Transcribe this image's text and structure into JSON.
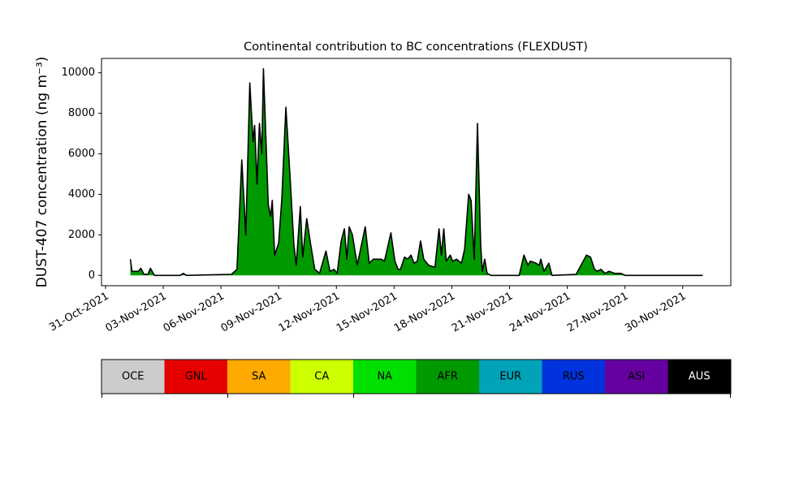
{
  "chart_data": {
    "type": "area",
    "title": "Continental contribution to BC concentrations (FLEXDUST)",
    "y_label": "DUST-407 concentration (ng m⁻³)",
    "x": [
      "2021-11-01T07:00Z",
      "2021-11-01T09:00Z",
      "2021-11-01T17:00Z",
      "2021-11-01T20:00Z",
      "2021-11-02T00:00Z",
      "2021-11-02T05:00Z",
      "2021-11-02T08:00Z",
      "2021-11-02T13:00Z",
      "2021-11-03T21:00Z",
      "2021-11-04T01:00Z",
      "2021-11-04T05:00Z",
      "2021-11-06T13:00Z",
      "2021-11-06T20:00Z",
      "2021-11-07T02:00Z",
      "2021-11-07T07:00Z",
      "2021-11-07T12:00Z",
      "2021-11-07T16:00Z",
      "2021-11-07T18:00Z",
      "2021-11-07T21:00Z",
      "2021-11-08T00:00Z",
      "2021-11-08T03:00Z",
      "2021-11-08T05:00Z",
      "2021-11-08T11:00Z",
      "2021-11-08T14:00Z",
      "2021-11-08T16:00Z",
      "2021-11-08T19:00Z",
      "2021-11-09T00:00Z",
      "2021-11-09T04:00Z",
      "2021-11-09T09:00Z",
      "2021-11-09T14:00Z",
      "2021-11-09T19:00Z",
      "2021-11-09T22:00Z",
      "2021-11-10T03:00Z",
      "2021-11-10T06:00Z",
      "2021-11-10T11:00Z",
      "2021-11-10T16:00Z",
      "2021-11-10T21:00Z",
      "2021-11-11T03:00Z",
      "2021-11-11T11:00Z",
      "2021-11-11T16:00Z",
      "2021-11-11T21:00Z",
      "2021-11-12T01:00Z",
      "2021-11-12T06:00Z",
      "2021-11-12T10:00Z",
      "2021-11-12T13:00Z",
      "2021-11-12T16:00Z",
      "2021-11-12T20:00Z",
      "2021-11-13T02:00Z",
      "2021-11-13T12:00Z",
      "2021-11-13T17:00Z",
      "2021-11-13T22:00Z",
      "2021-11-14T08:00Z",
      "2021-11-14T12:00Z",
      "2021-11-14T20:00Z",
      "2021-11-15T01:00Z",
      "2021-11-15T05:00Z",
      "2021-11-15T08:00Z",
      "2021-11-15T13:00Z",
      "2021-11-15T17:00Z",
      "2021-11-15T21:00Z",
      "2021-11-16T01:00Z",
      "2021-11-16T05:00Z",
      "2021-11-16T09:00Z",
      "2021-11-16T13:00Z",
      "2021-11-16T19:00Z",
      "2021-11-17T03:00Z",
      "2021-11-17T08:00Z",
      "2021-11-17T11:00Z",
      "2021-11-17T14:00Z",
      "2021-11-17T17:00Z",
      "2021-11-17T22:00Z",
      "2021-11-18T01:00Z",
      "2021-11-18T06:00Z",
      "2021-11-18T12:00Z",
      "2021-11-18T16:00Z",
      "2021-11-18T21:00Z",
      "2021-11-19T00:00Z",
      "2021-11-19T04:00Z",
      "2021-11-19T08:00Z",
      "2021-11-19T12:00Z",
      "2021-11-19T14:00Z",
      "2021-11-19T17:00Z",
      "2021-11-19T20:00Z",
      "2021-11-20T01:00Z",
      "2021-11-21T12:00Z",
      "2021-11-21T18:00Z",
      "2021-11-21T23:00Z",
      "2021-11-22T02:00Z",
      "2021-11-22T09:00Z",
      "2021-11-22T13:00Z",
      "2021-11-22T15:00Z",
      "2021-11-22T19:00Z",
      "2021-11-23T01:00Z",
      "2021-11-23T05:00Z",
      "2021-11-24T11:00Z",
      "2021-11-25T00:00Z",
      "2021-11-25T05:00Z",
      "2021-11-25T10:00Z",
      "2021-11-25T13:00Z",
      "2021-11-25T18:00Z",
      "2021-11-25T23:00Z",
      "2021-11-26T04:00Z",
      "2021-11-26T11:00Z",
      "2021-11-26T19:00Z",
      "2021-11-27T00:00Z",
      "2021-12-01T01:00Z"
    ],
    "series": [
      {
        "name": "AFR",
        "color": "#009900",
        "values": [
          800,
          200,
          200,
          350,
          50,
          60,
          350,
          0,
          0,
          100,
          0,
          50,
          300,
          5700,
          2000,
          9500,
          6600,
          7400,
          4500,
          7500,
          6000,
          10200,
          3500,
          2900,
          3700,
          1000,
          1600,
          3800,
          8300,
          5000,
          1500,
          500,
          3400,
          900,
          2800,
          1500,
          300,
          100,
          1200,
          200,
          300,
          100,
          1700,
          2300,
          800,
          2400,
          2000,
          500,
          2400,
          600,
          800,
          800,
          700,
          2100,
          700,
          300,
          300,
          900,
          800,
          1000,
          600,
          700,
          1700,
          800,
          500,
          400,
          2300,
          1000,
          2300,
          700,
          1000,
          700,
          800,
          600,
          1300,
          4000,
          3700,
          800,
          7500,
          1500,
          200,
          800,
          100,
          0,
          0,
          1000,
          500,
          700,
          600,
          500,
          800,
          200,
          600,
          0,
          50,
          1000,
          900,
          300,
          200,
          300,
          100,
          200,
          100,
          100,
          0,
          0
        ]
      }
    ],
    "outline_color": "#000000",
    "legend": [
      {
        "name": "OCE",
        "color": "#cccccc"
      },
      {
        "name": "GNL",
        "color": "#e60000"
      },
      {
        "name": "SA",
        "color": "#ffaa00"
      },
      {
        "name": "CA",
        "color": "#ccff00"
      },
      {
        "name": "NA",
        "color": "#00e000"
      },
      {
        "name": "AFR",
        "color": "#009900"
      },
      {
        "name": "EUR",
        "color": "#00a3b8"
      },
      {
        "name": "RUS",
        "color": "#0033dd"
      },
      {
        "name": "ASI",
        "color": "#6600a0"
      },
      {
        "name": "AUS",
        "color": "#000000"
      }
    ],
    "xlim": [
      "2021-10-30T19:00Z",
      "2021-12-02T12:00Z"
    ],
    "xticks": [
      {
        "value": "2021-10-31T00:00Z",
        "label": "31-Oct-2021"
      },
      {
        "value": "2021-11-03T00:00Z",
        "label": "03-Nov-2021"
      },
      {
        "value": "2021-11-06T00:00Z",
        "label": "06-Nov-2021"
      },
      {
        "value": "2021-11-09T00:00Z",
        "label": "09-Nov-2021"
      },
      {
        "value": "2021-11-12T00:00Z",
        "label": "12-Nov-2021"
      },
      {
        "value": "2021-11-15T00:00Z",
        "label": "15-Nov-2021"
      },
      {
        "value": "2021-11-18T00:00Z",
        "label": "18-Nov-2021"
      },
      {
        "value": "2021-11-21T00:00Z",
        "label": "21-Nov-2021"
      },
      {
        "value": "2021-11-24T00:00Z",
        "label": "24-Nov-2021"
      },
      {
        "value": "2021-11-27T00:00Z",
        "label": "27-Nov-2021"
      },
      {
        "value": "2021-11-30T00:00Z",
        "label": "30-Nov-2021"
      }
    ],
    "ylim": [
      -510,
      10710
    ],
    "yticks": [
      0,
      2000,
      4000,
      6000,
      8000,
      10000
    ]
  }
}
